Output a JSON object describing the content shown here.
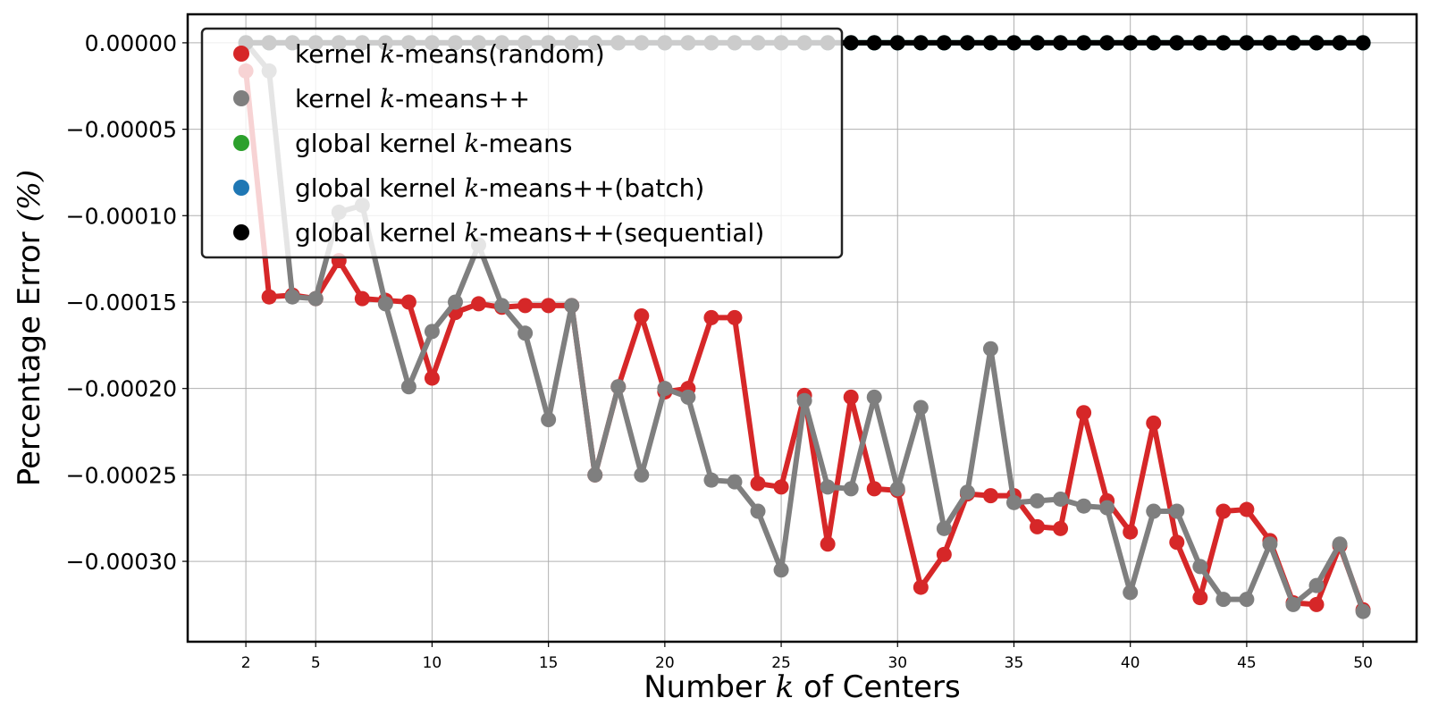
{
  "chart_data": {
    "type": "line",
    "xlabel": {
      "before": "Number ",
      "var": "k",
      "after": " of Centers"
    },
    "ylabel": {
      "before": "Percentage Error ",
      "var": "(%)",
      "after": ""
    },
    "xlim": [
      -0.5,
      52.3
    ],
    "ylim": [
      -0.0003465,
      1.65e-05
    ],
    "x_ticks": [
      2,
      5,
      10,
      15,
      20,
      25,
      30,
      35,
      40,
      45,
      50
    ],
    "y_ticks": [
      0.0,
      -5e-05,
      -0.0001,
      -0.00015,
      -0.0002,
      -0.00025,
      -0.0003
    ],
    "y_tick_labels": [
      "0.00000",
      "−0.00005",
      "−0.00010",
      "−0.00015",
      "−0.00020",
      "−0.00025",
      "−0.00030"
    ],
    "grid": true,
    "legend_position": "top-left",
    "x": [
      2,
      3,
      4,
      5,
      6,
      7,
      8,
      9,
      10,
      11,
      12,
      13,
      14,
      15,
      16,
      17,
      18,
      19,
      20,
      21,
      22,
      23,
      24,
      25,
      26,
      27,
      28,
      29,
      30,
      31,
      32,
      33,
      34,
      35,
      36,
      37,
      38,
      39,
      40,
      41,
      42,
      43,
      44,
      45,
      46,
      47,
      48,
      49,
      50
    ],
    "series": [
      {
        "name_parts": [
          "kernel ",
          "k",
          "-means(random)"
        ],
        "color": "#d62728",
        "values": [
          -1.63e-05,
          -0.000147,
          -0.000146,
          -0.000148,
          -0.000126,
          -0.000148,
          -0.000149,
          -0.00015,
          -0.000194,
          -0.000156,
          -0.000151,
          -0.000153,
          -0.000152,
          -0.000152,
          -0.000152,
          -0.00025,
          -0.000199,
          -0.000158,
          -0.000202,
          -0.0002,
          -0.000159,
          -0.000159,
          -0.000255,
          -0.000257,
          -0.000204,
          -0.00029,
          -0.000205,
          -0.000258,
          -0.000259,
          -0.000315,
          -0.000296,
          -0.000261,
          -0.000262,
          -0.000262,
          -0.00028,
          -0.000281,
          -0.000214,
          -0.000265,
          -0.000283,
          -0.00022,
          -0.000289,
          -0.000321,
          -0.000271,
          -0.00027,
          -0.000288,
          -0.000324,
          -0.000325,
          -0.000291,
          -0.000328
        ]
      },
      {
        "name_parts": [
          "kernel ",
          "k",
          "-means++"
        ],
        "color": "#7f7f7f",
        "values": [
          0.0,
          -1.63e-05,
          -0.000147,
          -0.000148,
          -9.8e-05,
          -9.4e-05,
          -0.000151,
          -0.000199,
          -0.000167,
          -0.00015,
          -0.000117,
          -0.000152,
          -0.000168,
          -0.000218,
          -0.000152,
          -0.00025,
          -0.000199,
          -0.00025,
          -0.0002,
          -0.000205,
          -0.000253,
          -0.000254,
          -0.000271,
          -0.000305,
          -0.000207,
          -0.000257,
          -0.000258,
          -0.000205,
          -0.000258,
          -0.000211,
          -0.000281,
          -0.00026,
          -0.000177,
          -0.000266,
          -0.000265,
          -0.000264,
          -0.000268,
          -0.000269,
          -0.000318,
          -0.000271,
          -0.000271,
          -0.000303,
          -0.000322,
          -0.000322,
          -0.00029,
          -0.000325,
          -0.000314,
          -0.00029,
          -0.000329
        ]
      },
      {
        "name_parts": [
          "global kernel ",
          "k",
          "-means"
        ],
        "color": "#2ca02c",
        "values": [
          0,
          0,
          0,
          0,
          0,
          0,
          0,
          0,
          0,
          0,
          0,
          0,
          0,
          0,
          0,
          0,
          0,
          0,
          0,
          0,
          0,
          0,
          0,
          0,
          0,
          0,
          0,
          0,
          0,
          0,
          0,
          0,
          0,
          0,
          0,
          0,
          0,
          0,
          0,
          0,
          0,
          0,
          0,
          0,
          0,
          0,
          0,
          0,
          0
        ]
      },
      {
        "name_parts": [
          "global kernel ",
          "k",
          "-means++(batch)"
        ],
        "color": "#1f77b4",
        "values": [
          0,
          0,
          0,
          0,
          0,
          0,
          0,
          0,
          0,
          0,
          0,
          0,
          0,
          0,
          0,
          0,
          0,
          0,
          0,
          0,
          0,
          0,
          0,
          0,
          0,
          0,
          0,
          0,
          0,
          0,
          0,
          0,
          0,
          0,
          0,
          0,
          0,
          0,
          0,
          0,
          0,
          0,
          0,
          0,
          0,
          0,
          0,
          0,
          0
        ]
      },
      {
        "name_parts": [
          "global kernel ",
          "k",
          "-means++(sequential)"
        ],
        "color": "#000000",
        "values": [
          0,
          0,
          0,
          0,
          0,
          0,
          0,
          0,
          0,
          0,
          0,
          0,
          0,
          0,
          0,
          0,
          0,
          0,
          0,
          0,
          0,
          0,
          0,
          0,
          0,
          0,
          0,
          0,
          0,
          0,
          0,
          0,
          0,
          0,
          0,
          0,
          0,
          0,
          0,
          0,
          0,
          0,
          0,
          0,
          0,
          0,
          0,
          0,
          0
        ]
      }
    ]
  }
}
